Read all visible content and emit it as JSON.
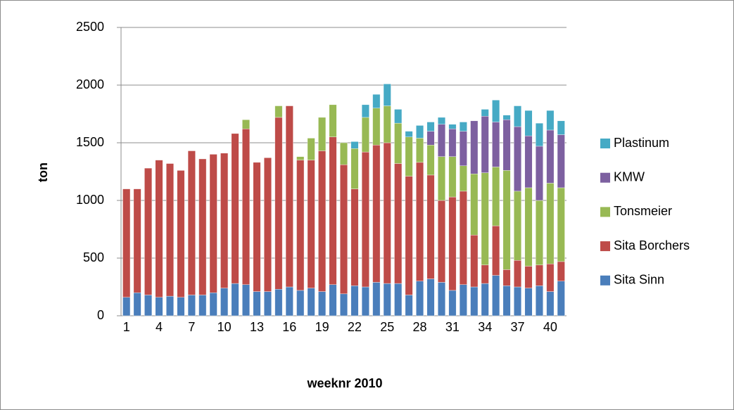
{
  "chart_data": {
    "type": "stacked_bar",
    "x_label": "weeknr 2010",
    "y_label": "ton",
    "categories": [
      "1",
      null,
      null,
      "4",
      null,
      null,
      "7",
      null,
      null,
      "10",
      null,
      null,
      "13",
      null,
      null,
      "16",
      null,
      null,
      "19",
      null,
      null,
      "22",
      null,
      null,
      "25",
      null,
      null,
      "28",
      null,
      null,
      "31",
      null,
      null,
      "34",
      null,
      null,
      "37",
      null,
      null,
      "40",
      null
    ],
    "ylim": [
      0,
      2500
    ],
    "yticks": [
      0,
      500,
      1000,
      1500,
      2000,
      2500
    ],
    "grid": true,
    "legend": "right",
    "series": [
      {
        "name": "Sita Sinn",
        "color": "#4a7ebb",
        "values": [
          160,
          200,
          180,
          160,
          170,
          160,
          180,
          180,
          200,
          240,
          280,
          270,
          210,
          210,
          230,
          250,
          220,
          240,
          210,
          270,
          190,
          260,
          250,
          290,
          280,
          280,
          180,
          300,
          320,
          290,
          220,
          270,
          250,
          280,
          350,
          260,
          250,
          240,
          260,
          210,
          300
        ]
      },
      {
        "name": "Sita Borchers",
        "color": "#be4b48",
        "values": [
          940,
          900,
          1100,
          1190,
          1150,
          1100,
          1250,
          1180,
          1200,
          1170,
          1300,
          1350,
          1120,
          1160,
          1490,
          1570,
          1130,
          1110,
          1220,
          1280,
          1120,
          840,
          1170,
          1190,
          1220,
          1040,
          1030,
          1030,
          900,
          710,
          810,
          810,
          450,
          160,
          430,
          140,
          230,
          190,
          180,
          240,
          170
        ]
      },
      {
        "name": "Tonsmeier",
        "color": "#98b954",
        "values": [
          0,
          0,
          0,
          0,
          0,
          0,
          0,
          0,
          0,
          0,
          0,
          80,
          0,
          0,
          100,
          0,
          30,
          190,
          290,
          280,
          190,
          350,
          300,
          320,
          320,
          350,
          340,
          210,
          260,
          380,
          350,
          220,
          530,
          800,
          510,
          860,
          600,
          680,
          560,
          700,
          640
        ]
      },
      {
        "name": "KMW",
        "color": "#7d60a0",
        "values": [
          0,
          0,
          0,
          0,
          0,
          0,
          0,
          0,
          0,
          0,
          0,
          0,
          0,
          0,
          0,
          0,
          0,
          0,
          0,
          0,
          0,
          0,
          0,
          0,
          0,
          0,
          0,
          0,
          120,
          280,
          240,
          300,
          460,
          490,
          390,
          440,
          560,
          450,
          470,
          460,
          460
        ]
      },
      {
        "name": "Plastinum",
        "color": "#46aac5",
        "values": [
          0,
          0,
          0,
          0,
          0,
          0,
          0,
          0,
          0,
          0,
          0,
          0,
          0,
          0,
          0,
          0,
          0,
          0,
          0,
          0,
          0,
          60,
          110,
          120,
          190,
          120,
          50,
          110,
          80,
          60,
          40,
          80,
          0,
          60,
          190,
          40,
          180,
          220,
          200,
          170,
          120
        ]
      }
    ]
  }
}
